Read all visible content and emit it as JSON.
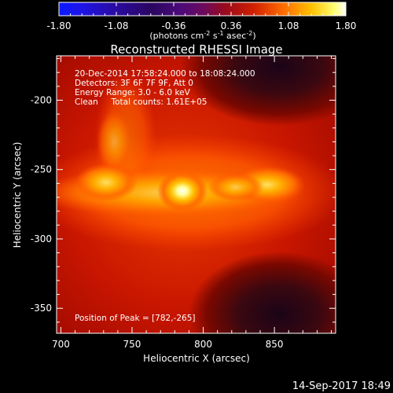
{
  "colorbar": {
    "ticks": [
      "-1.80",
      "-1.08",
      "-0.36",
      "0.36",
      "1.08",
      "1.80"
    ],
    "units_pre": "(photons cm",
    "units_exp1": "-2",
    "units_mid": " s",
    "units_exp2": "-1",
    "units_mid2": " asec",
    "units_exp3": "-2",
    "units_post": ")"
  },
  "annotations": [
    "20-Dec-2014 17:58:24.000 to 18:08:24.000",
    "Detectors: 3F 6F 7F 9F, Att 0",
    "Energy Range: 3.0 - 6.0 keV",
    "Clean     Total counts: 1.61E+05"
  ],
  "peak_label": "Position of Peak = [782,-265]",
  "timestamp": "14-Sep-2017 18:49",
  "chart_data": {
    "type": "heatmap",
    "title": "Reconstructed RHESSI Image",
    "xlabel": "Heliocentric X (arcsec)",
    "ylabel": "Heliocentric Y (arcsec)",
    "xlim": [
      697,
      893
    ],
    "ylim": [
      -368,
      -168
    ],
    "x_ticks": [
      700,
      750,
      800,
      850
    ],
    "y_ticks": [
      -200,
      -250,
      -300,
      -350
    ],
    "colorbar_range": [
      -1.8,
      1.8
    ],
    "peak_position": [
      782,
      -265
    ],
    "features": [
      {
        "x": 782,
        "y": -265,
        "level": 1.0
      },
      {
        "x": 730,
        "y": -257,
        "level": 0.82
      },
      {
        "x": 845,
        "y": -258,
        "level": 0.78
      },
      {
        "x": 810,
        "y": -262,
        "level": 0.7
      },
      {
        "x": 745,
        "y": -215,
        "level": 0.55
      }
    ]
  }
}
